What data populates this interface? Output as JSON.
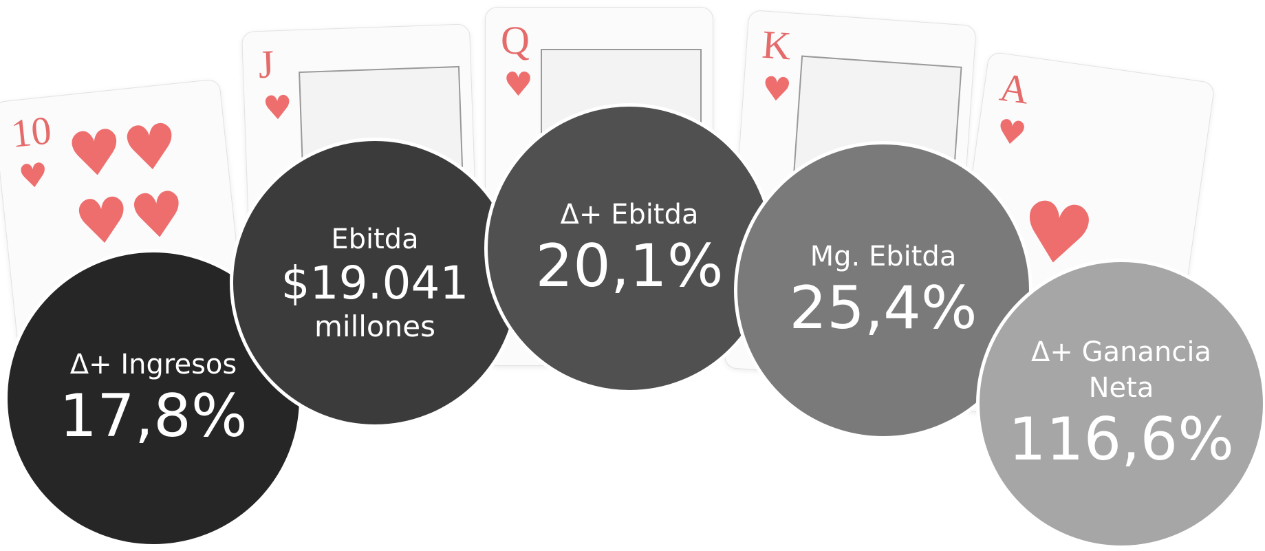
{
  "cards": [
    "10",
    "J",
    "Q",
    "K",
    "A"
  ],
  "kpis": [
    {
      "label": "Δ+ Ingresos",
      "value": "17,8%"
    },
    {
      "label": "Ebitda",
      "value": "$19.041",
      "unit": "millones"
    },
    {
      "label": "Δ+ Ebitda",
      "value": "20,1%"
    },
    {
      "label": "Mg. Ebitda",
      "value": "25,4%"
    },
    {
      "label": "Δ+ Ganancia Neta",
      "value": "116,6%"
    }
  ]
}
